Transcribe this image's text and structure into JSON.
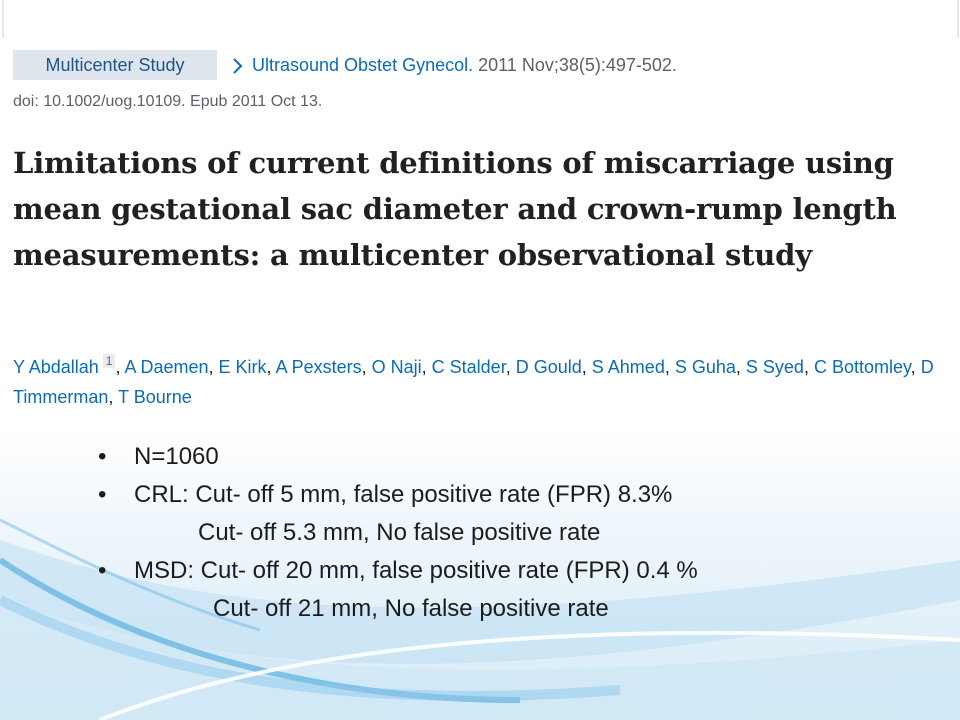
{
  "header": {
    "badge": "Multicenter Study",
    "journal": "Ultrasound Obstet Gynecol.",
    "citation": " 2011 Nov;38(5):497-502.",
    "doi": "doi: 10.1002/uog.10109. Epub 2011 Oct 13."
  },
  "title": "Limitations of current definitions of miscarriage using mean gestational sac diameter and crown-rump length measurements: a multicenter observational study",
  "authors": {
    "names": [
      "Y Abdallah",
      "A Daemen",
      "E Kirk",
      "A Pexsters",
      "O Naji",
      "C Stalder",
      "D Gould",
      "S Ahmed",
      "S Guha",
      "S Syed",
      "C Bottomley",
      "D Timmerman",
      "T Bourne"
    ],
    "affiliation_mark": "1",
    "separator": ", "
  },
  "bullets": [
    {
      "text": "N=1060",
      "continuation": null
    },
    {
      "text": "CRL: Cut- off 5 mm, false positive rate (FPR) 8.3%",
      "continuation": "Cut- off 5.3 mm, No false positive rate"
    },
    {
      "text": "MSD: Cut- off 20 mm, false positive rate (FPR) 0.4 %",
      "continuation": "Cut- off 21 mm, No false positive rate"
    }
  ]
}
